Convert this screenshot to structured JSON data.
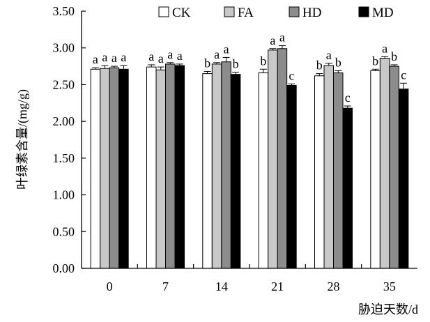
{
  "chart_data": {
    "type": "bar",
    "title": "",
    "xlabel": "胁迫天数/d",
    "ylabel": "叶绿素含量/(mg/g)",
    "ylim": [
      0,
      3.5
    ],
    "y_ticks": [
      "0.00",
      "0.50",
      "1.00",
      "1.50",
      "2.00",
      "2.50",
      "3.00",
      "3.50"
    ],
    "categories": [
      "0",
      "7",
      "14",
      "21",
      "28",
      "35"
    ],
    "legend_position": "top",
    "grid": false,
    "series": [
      {
        "name": "CK",
        "fill": "#ffffff",
        "values": [
          2.71,
          2.74,
          2.65,
          2.66,
          2.62,
          2.69
        ],
        "errors": [
          0.02,
          0.03,
          0.03,
          0.05,
          0.03,
          0.02
        ],
        "letters": [
          "a",
          "a",
          "b",
          "b",
          "b",
          "b"
        ]
      },
      {
        "name": "FA",
        "fill": "#c8c8c8",
        "values": [
          2.72,
          2.7,
          2.78,
          2.97,
          2.76,
          2.86
        ],
        "errors": [
          0.04,
          0.04,
          0.02,
          0.02,
          0.03,
          0.02
        ],
        "letters": [
          "a",
          "a",
          "a",
          "a",
          "a",
          "a"
        ]
      },
      {
        "name": "HD",
        "fill": "#8c8c8c",
        "values": [
          2.73,
          2.78,
          2.81,
          2.99,
          2.66,
          2.75
        ],
        "errors": [
          0.02,
          0.02,
          0.06,
          0.04,
          0.03,
          0.02
        ],
        "letters": [
          "a",
          "a",
          "a",
          "a",
          "b",
          "b"
        ]
      },
      {
        "name": "MD",
        "fill": "#000000",
        "values": [
          2.71,
          2.76,
          2.64,
          2.49,
          2.18,
          2.44
        ],
        "errors": [
          0.05,
          0.02,
          0.03,
          0.02,
          0.03,
          0.08
        ],
        "letters": [
          "a",
          "a",
          "b",
          "c",
          "c",
          "c"
        ]
      }
    ]
  }
}
